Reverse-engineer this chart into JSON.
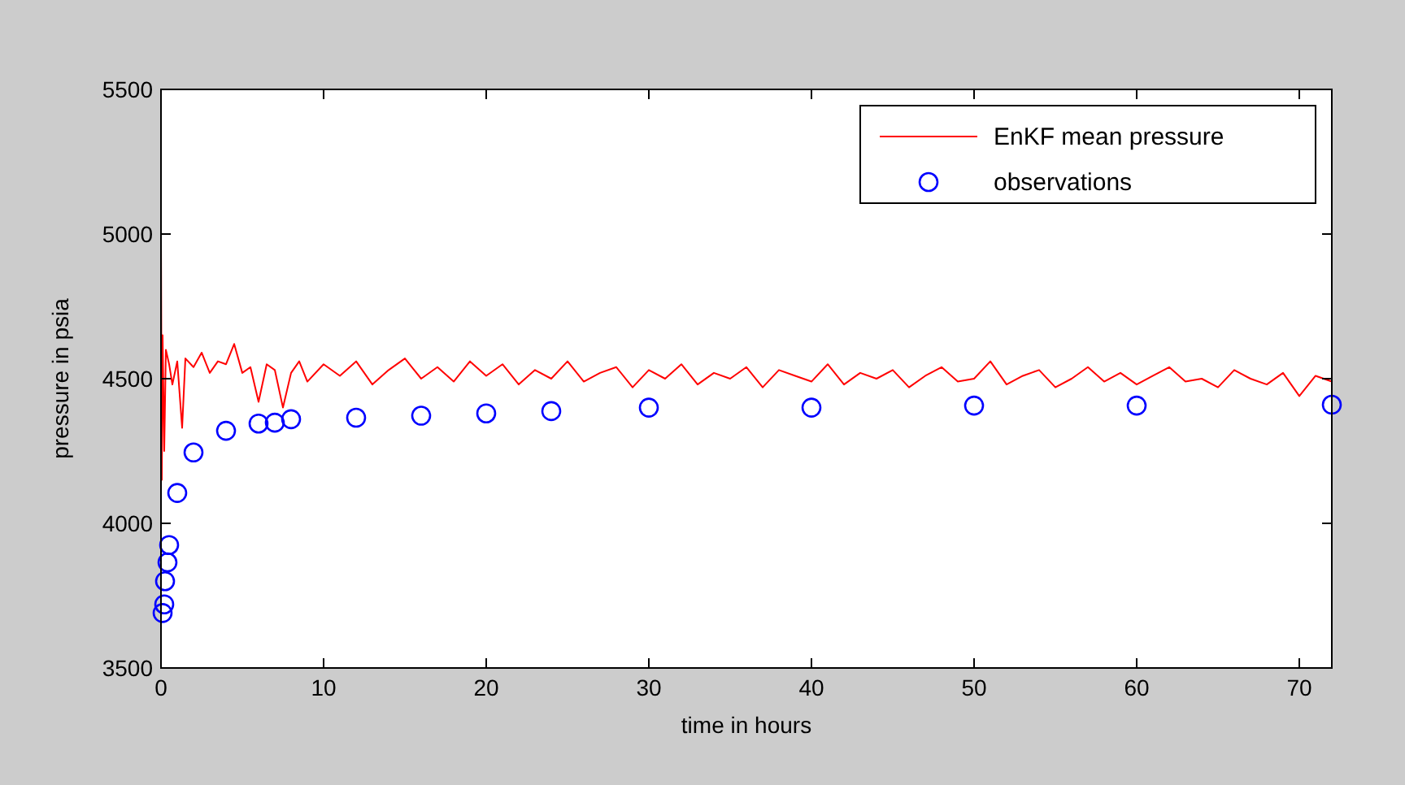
{
  "chart_data": {
    "type": "line",
    "xlabel": "time in hours",
    "ylabel": "pressure in psia",
    "xlim": [
      0,
      72
    ],
    "ylim": [
      3500,
      5500
    ],
    "xticks": [
      0,
      10,
      20,
      30,
      40,
      50,
      60,
      70
    ],
    "yticks": [
      3500,
      4000,
      4500,
      5000,
      5500
    ],
    "grid": false,
    "legend": "top right",
    "series": [
      {
        "name": "EnKF mean pressure",
        "color": "#ff0000",
        "x": [
          0,
          0.05,
          0.1,
          0.2,
          0.3,
          0.5,
          0.7,
          1,
          1.3,
          1.5,
          2,
          2.5,
          3,
          3.5,
          4,
          4.5,
          5,
          5.5,
          6,
          6.5,
          7,
          7.5,
          8,
          8.5,
          9,
          10,
          11,
          12,
          13,
          14,
          15,
          16,
          17,
          18,
          19,
          20,
          21,
          22,
          23,
          24,
          25,
          26,
          27,
          28,
          29,
          30,
          31,
          32,
          33,
          34,
          35,
          36,
          37,
          38,
          39,
          40,
          41,
          42,
          43,
          44,
          45,
          46,
          47,
          48,
          49,
          50,
          51,
          52,
          53,
          54,
          55,
          56,
          57,
          58,
          59,
          60,
          61,
          62,
          63,
          64,
          65,
          66,
          67,
          68,
          69,
          70,
          71,
          72
        ],
        "values": [
          5000,
          4150,
          4650,
          4250,
          4600,
          4550,
          4480,
          4560,
          4330,
          4570,
          4540,
          4590,
          4520,
          4560,
          4550,
          4620,
          4520,
          4540,
          4420,
          4550,
          4530,
          4400,
          4520,
          4560,
          4490,
          4550,
          4510,
          4560,
          4480,
          4530,
          4570,
          4500,
          4540,
          4490,
          4560,
          4510,
          4550,
          4480,
          4530,
          4500,
          4560,
          4490,
          4520,
          4540,
          4470,
          4530,
          4500,
          4550,
          4480,
          4520,
          4500,
          4540,
          4470,
          4530,
          4510,
          4490,
          4550,
          4480,
          4520,
          4500,
          4530,
          4470,
          4510,
          4540,
          4490,
          4500,
          4560,
          4480,
          4510,
          4530,
          4470,
          4500,
          4540,
          4490,
          4520,
          4480,
          4510,
          4540,
          4490,
          4500,
          4470,
          4530,
          4500,
          4480,
          4520,
          4440,
          4510,
          4490
        ]
      },
      {
        "name": "observations",
        "type": "scatter",
        "color": "#0000ff",
        "marker": "circle",
        "x": [
          0.1,
          0.2,
          0.25,
          0.4,
          0.5,
          1,
          2,
          4,
          6,
          7,
          8,
          12,
          16,
          20,
          24,
          30,
          40,
          50,
          60,
          72
        ],
        "values": [
          3690,
          3720,
          3800,
          3865,
          3925,
          4105,
          4245,
          4320,
          4345,
          4348,
          4360,
          4365,
          4372,
          4380,
          4388,
          4400,
          4400,
          4407,
          4407,
          4410
        ]
      }
    ]
  }
}
